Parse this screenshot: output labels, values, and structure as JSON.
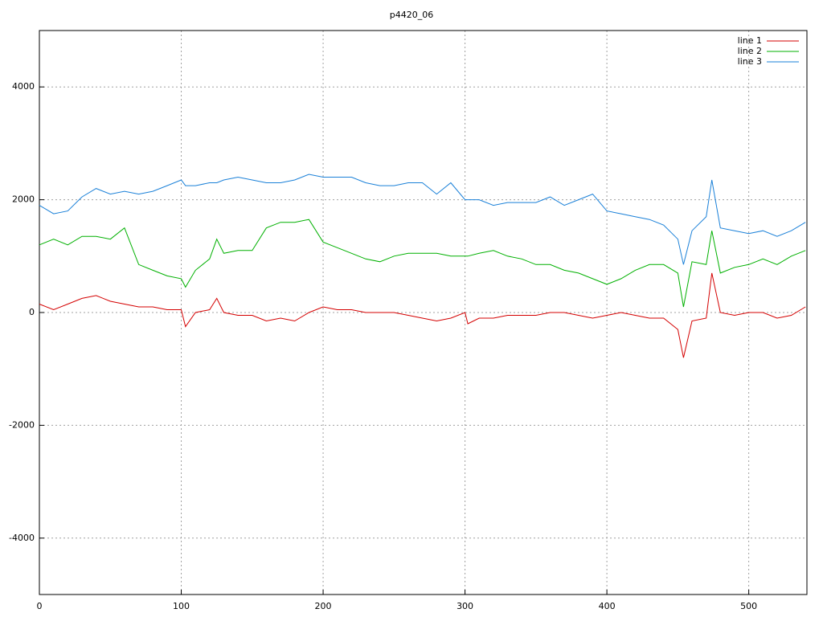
{
  "chart_data": {
    "type": "line",
    "title": "p4420_06",
    "x": [
      0,
      10,
      20,
      30,
      40,
      50,
      60,
      70,
      80,
      90,
      100,
      103,
      110,
      120,
      125,
      130,
      140,
      150,
      160,
      170,
      180,
      190,
      200,
      210,
      220,
      230,
      240,
      250,
      260,
      270,
      280,
      290,
      300,
      302,
      310,
      320,
      330,
      340,
      350,
      360,
      370,
      380,
      390,
      400,
      410,
      420,
      430,
      440,
      450,
      454,
      460,
      470,
      474,
      480,
      490,
      500,
      510,
      520,
      530,
      540
    ],
    "series": [
      {
        "name": "line 1",
        "color": "#d40000",
        "values": [
          150,
          50,
          150,
          250,
          300,
          200,
          150,
          100,
          100,
          50,
          50,
          -250,
          0,
          50,
          250,
          0,
          -50,
          -50,
          -150,
          -100,
          -150,
          0,
          100,
          50,
          50,
          0,
          0,
          0,
          -50,
          -100,
          -150,
          -100,
          0,
          -200,
          -100,
          -100,
          -50,
          -50,
          -50,
          0,
          0,
          -50,
          -100,
          -50,
          0,
          -50,
          -100,
          -100,
          -300,
          -800,
          -150,
          -100,
          700,
          0,
          -50,
          0,
          0,
          -100,
          -50,
          100
        ]
      },
      {
        "name": "line 2",
        "color": "#00b000",
        "values": [
          1200,
          1300,
          1200,
          1350,
          1350,
          1300,
          1500,
          850,
          750,
          650,
          600,
          450,
          750,
          950,
          1300,
          1050,
          1100,
          1100,
          1500,
          1600,
          1600,
          1650,
          1250,
          1150,
          1050,
          950,
          900,
          1000,
          1050,
          1050,
          1050,
          1000,
          1000,
          1000,
          1050,
          1100,
          1000,
          950,
          850,
          850,
          750,
          700,
          600,
          500,
          600,
          750,
          850,
          850,
          700,
          100,
          900,
          850,
          1450,
          700,
          800,
          850,
          950,
          850,
          1000,
          1100
        ]
      },
      {
        "name": "line 3",
        "color": "#1a80d8",
        "values": [
          1900,
          1750,
          1800,
          2050,
          2200,
          2100,
          2150,
          2100,
          2150,
          2250,
          2350,
          2250,
          2250,
          2300,
          2300,
          2350,
          2400,
          2350,
          2300,
          2300,
          2350,
          2450,
          2400,
          2400,
          2400,
          2300,
          2250,
          2250,
          2300,
          2300,
          2100,
          2300,
          2000,
          2000,
          2000,
          1900,
          1950,
          1950,
          1950,
          2050,
          1900,
          2000,
          2100,
          1800,
          1750,
          1700,
          1650,
          1550,
          1300,
          850,
          1450,
          1700,
          2350,
          1500,
          1450,
          1400,
          1450,
          1350,
          1450,
          1600
        ]
      }
    ],
    "xlim": [
      0,
      541
    ],
    "xticks": [
      0,
      100,
      200,
      300,
      400,
      500
    ],
    "ylim": [
      -5000,
      5000
    ],
    "yticks": [
      -4000,
      -2000,
      0,
      2000,
      4000
    ],
    "grid": true,
    "legend": "top-right"
  }
}
